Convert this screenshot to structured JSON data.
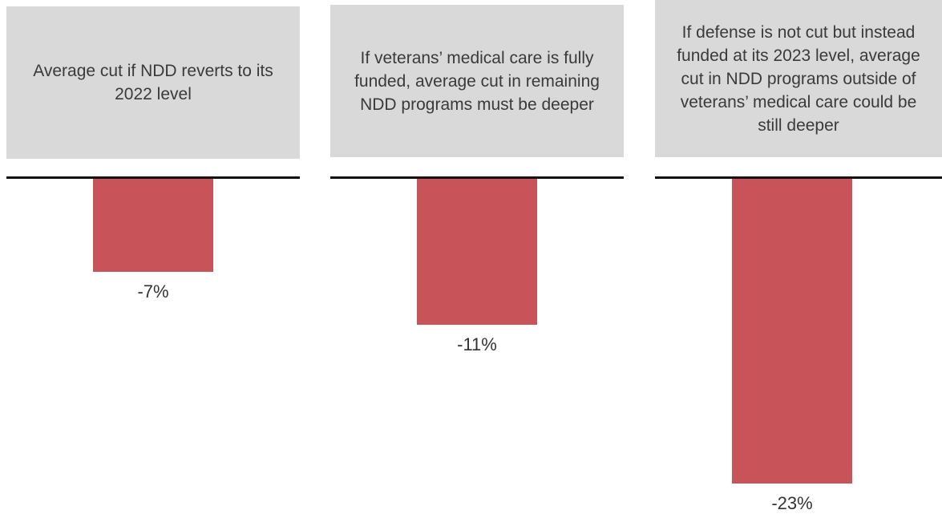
{
  "chart_data": {
    "type": "bar",
    "orientation": "negative-vertical",
    "categories": [
      "Average cut if NDD reverts to its 2022 level",
      "If veterans’ medical care is fully funded, average cut in remaining NDD programs must be deeper",
      "If defense is not cut but instead funded at its 2023 level, average cut in NDD programs outside of veterans’ medical care could be still deeper"
    ],
    "values": [
      -7,
      -11,
      -23
    ],
    "value_labels": [
      "-7%",
      "-11%",
      "-23%"
    ],
    "ylim": [
      -25,
      0
    ],
    "grid": false,
    "legend": "none",
    "colors": {
      "bar": "#c8545a",
      "header_background": "#d9d9d9",
      "baseline": "#111111",
      "text": "#333333"
    }
  }
}
